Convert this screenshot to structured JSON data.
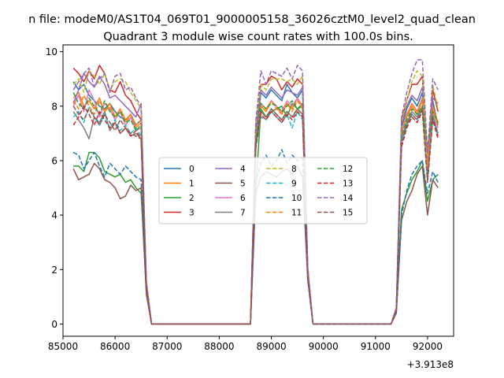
{
  "chart_data": {
    "type": "line",
    "suptitle": "n file: modeM0/AS1T04_069T01_9000005158_36026cztM0_level2_quad_clean",
    "title": "Quadrant 3 module wise count rates with 100.0s bins.",
    "xlabel": "",
    "ylabel": "",
    "x_offset_label": "+3.913e8",
    "xlim": [
      85000,
      92500
    ],
    "ylim": [
      -0.45,
      10.25
    ],
    "xticks": [
      85000,
      86000,
      87000,
      88000,
      89000,
      90000,
      91000,
      92000
    ],
    "xtick_labels": [
      "85000",
      "86000",
      "87000",
      "88000",
      "89000",
      "90000",
      "91000",
      "92000"
    ],
    "yticks": [
      0,
      2,
      4,
      6,
      8,
      10
    ],
    "ytick_labels": [
      "0",
      "2",
      "4",
      "6",
      "8",
      "10"
    ],
    "x": [
      85200,
      85300,
      85400,
      85500,
      85600,
      85700,
      85800,
      85900,
      86000,
      86100,
      86200,
      86300,
      86400,
      86500,
      86600,
      86700,
      86800,
      86900,
      87000,
      87100,
      87200,
      87300,
      87400,
      87500,
      87600,
      87700,
      87800,
      87900,
      88000,
      88100,
      88200,
      88300,
      88400,
      88500,
      88600,
      88700,
      88800,
      88900,
      89000,
      89100,
      89200,
      89300,
      89400,
      89500,
      89600,
      89700,
      89800,
      89900,
      90000,
      90100,
      90200,
      90300,
      90400,
      90500,
      90600,
      90700,
      90800,
      90900,
      91000,
      91100,
      91200,
      91300,
      91400,
      91500,
      91600,
      91700,
      91800,
      91900,
      92000,
      92100,
      92200
    ],
    "series": [
      {
        "name": "0",
        "color": "#1f77b4",
        "dash": "solid",
        "values": [
          8.9,
          8.6,
          8.8,
          8.4,
          8.2,
          8.0,
          7.9,
          8.1,
          7.8,
          7.6,
          7.5,
          7.7,
          7.3,
          7.5,
          1.4,
          0,
          0,
          0,
          0,
          0,
          0,
          0,
          0,
          0,
          0,
          0,
          0,
          0,
          0,
          0,
          0,
          0,
          0,
          0,
          0,
          6.8,
          8.5,
          8.3,
          8.6,
          8.4,
          8.2,
          8.8,
          8.5,
          8.3,
          8.6,
          2.0,
          0,
          0,
          0,
          0,
          0,
          0,
          0,
          0,
          0,
          0,
          0,
          0,
          0,
          0,
          0,
          0,
          0.5,
          7.2,
          7.9,
          8.3,
          8.0,
          8.5,
          5.5,
          8.2,
          7.3
        ]
      },
      {
        "name": "1",
        "color": "#ff7f0e",
        "dash": "solid",
        "values": [
          8.3,
          8.5,
          8.0,
          8.2,
          7.9,
          8.3,
          7.8,
          8.1,
          7.6,
          7.9,
          7.5,
          7.7,
          7.2,
          7.4,
          1.4,
          0,
          0,
          0,
          0,
          0,
          0,
          0,
          0,
          0,
          0,
          0,
          0,
          0,
          0,
          0,
          0,
          0,
          0,
          0,
          0,
          6.6,
          8.0,
          7.8,
          8.2,
          8.0,
          7.7,
          8.1,
          7.9,
          8.3,
          8.0,
          1.9,
          0,
          0,
          0,
          0,
          0,
          0,
          0,
          0,
          0,
          0,
          0,
          0,
          0,
          0,
          0,
          0,
          0.5,
          7.0,
          7.6,
          8.0,
          7.7,
          8.2,
          5.8,
          8.0,
          7.4
        ]
      },
      {
        "name": "2",
        "color": "#2ca02c",
        "dash": "solid",
        "values": [
          5.8,
          5.8,
          5.6,
          6.3,
          6.3,
          6.1,
          5.6,
          5.5,
          5.4,
          5.5,
          5.2,
          5.3,
          5.0,
          4.8,
          1.2,
          0,
          0,
          0,
          0,
          0,
          0,
          0,
          0,
          0,
          0,
          0,
          0,
          0,
          0,
          0,
          0,
          0,
          0,
          0,
          0,
          4.9,
          7.9,
          7.6,
          7.8,
          7.9,
          8.0,
          7.6,
          8.1,
          7.9,
          8.0,
          1.9,
          0,
          0,
          0,
          0,
          0,
          0,
          0,
          0,
          0,
          0,
          0,
          0,
          0,
          0,
          0,
          0,
          0.5,
          4.2,
          4.8,
          5.3,
          5.6,
          6.0,
          4.5,
          5.3,
          5.5
        ]
      },
      {
        "name": "3",
        "color": "#d62728",
        "dash": "solid",
        "values": [
          9.4,
          9.2,
          8.9,
          9.3,
          9.0,
          9.5,
          9.2,
          8.6,
          8.5,
          8.9,
          8.4,
          8.2,
          7.8,
          7.5,
          1.5,
          0,
          0,
          0,
          0,
          0,
          0,
          0,
          0,
          0,
          0,
          0,
          0,
          0,
          0,
          0,
          0,
          0,
          0,
          0,
          0,
          7.2,
          8.8,
          8.8,
          9.1,
          9.0,
          8.6,
          8.9,
          8.7,
          9.0,
          8.8,
          2.0,
          0,
          0,
          0,
          0,
          0,
          0,
          0,
          0,
          0,
          0,
          0,
          0,
          0,
          0,
          0,
          0,
          0.6,
          7.5,
          8.2,
          8.8,
          8.8,
          9.1,
          6.0,
          8.6,
          7.8
        ]
      },
      {
        "name": "4",
        "color": "#9467bd",
        "dash": "solid",
        "values": [
          8.1,
          8.6,
          9.2,
          8.9,
          8.7,
          9.1,
          8.8,
          8.3,
          8.4,
          8.2,
          8.0,
          7.8,
          7.6,
          8.1,
          1.5,
          0,
          0,
          0,
          0,
          0,
          0,
          0,
          0,
          0,
          0,
          0,
          0,
          0,
          0,
          0,
          0,
          0,
          0,
          0,
          0,
          7.0,
          8.6,
          8.4,
          8.7,
          8.5,
          8.3,
          8.6,
          8.5,
          8.4,
          8.7,
          2.0,
          0,
          0,
          0,
          0,
          0,
          0,
          0,
          0,
          0,
          0,
          0,
          0,
          0,
          0,
          0,
          0,
          0.6,
          7.3,
          8.0,
          8.4,
          8.2,
          8.7,
          5.8,
          8.3,
          8.1
        ]
      },
      {
        "name": "5",
        "color": "#8c564b",
        "dash": "solid",
        "values": [
          5.7,
          5.3,
          5.4,
          5.5,
          5.9,
          5.7,
          5.3,
          5.2,
          5.0,
          4.6,
          4.7,
          5.1,
          4.9,
          5.0,
          1.1,
          0,
          0,
          0,
          0,
          0,
          0,
          0,
          0,
          0,
          0,
          0,
          0,
          0,
          0,
          0,
          0,
          0,
          0,
          0,
          0,
          4.8,
          5.4,
          5.6,
          5.5,
          5.4,
          5.6,
          5.7,
          5.5,
          5.8,
          5.4,
          1.6,
          0,
          0,
          0,
          0,
          0,
          0,
          0,
          0,
          0,
          0,
          0,
          0,
          0,
          0,
          0,
          0,
          0.4,
          3.8,
          4.5,
          4.9,
          5.5,
          5.8,
          4.0,
          5.3,
          5.0
        ]
      },
      {
        "name": "6",
        "color": "#e377c2",
        "dash": "solid",
        "values": [
          8.0,
          8.4,
          7.8,
          8.6,
          8.2,
          7.6,
          8.1,
          7.9,
          7.5,
          7.8,
          7.3,
          7.6,
          7.1,
          7.2,
          1.4,
          0,
          0,
          0,
          0,
          0,
          0,
          0,
          0,
          0,
          0,
          0,
          0,
          0,
          0,
          0,
          0,
          0,
          0,
          0,
          0,
          6.7,
          8.1,
          7.9,
          8.2,
          8.0,
          7.8,
          8.2,
          8.0,
          8.3,
          7.9,
          1.9,
          0,
          0,
          0,
          0,
          0,
          0,
          0,
          0,
          0,
          0,
          0,
          0,
          0,
          0,
          0,
          0,
          0.5,
          7.0,
          7.7,
          8.1,
          7.8,
          8.3,
          5.6,
          7.9,
          7.2
        ]
      },
      {
        "name": "7",
        "color": "#7f7f7f",
        "dash": "solid",
        "values": [
          7.8,
          7.5,
          7.2,
          6.8,
          7.6,
          7.4,
          7.8,
          7.1,
          7.4,
          7.0,
          7.2,
          6.9,
          7.0,
          6.8,
          1.3,
          0,
          0,
          0,
          0,
          0,
          0,
          0,
          0,
          0,
          0,
          0,
          0,
          0,
          0,
          0,
          0,
          0,
          0,
          0,
          0,
          6.5,
          7.8,
          7.6,
          7.9,
          7.7,
          7.5,
          7.8,
          7.6,
          7.9,
          7.7,
          1.8,
          0,
          0,
          0,
          0,
          0,
          0,
          0,
          0,
          0,
          0,
          0,
          0,
          0,
          0,
          0,
          0,
          0.5,
          6.8,
          7.4,
          7.8,
          7.6,
          8.0,
          5.4,
          7.7,
          7.0
        ]
      },
      {
        "name": "8",
        "color": "#bcbd22",
        "dash": "dashed",
        "values": [
          8.8,
          9.0,
          8.5,
          9.3,
          9.1,
          8.8,
          9.2,
          8.6,
          8.9,
          9.0,
          8.9,
          8.5,
          8.2,
          7.9,
          1.6,
          0,
          0,
          0,
          0,
          0,
          0,
          0,
          0,
          0,
          0,
          0,
          0,
          0,
          0,
          0,
          0,
          0,
          0,
          0,
          0,
          7.3,
          8.8,
          8.6,
          9.0,
          9.0,
          9.0,
          8.9,
          9.0,
          8.8,
          9.1,
          2.1,
          0,
          0,
          0,
          0,
          0,
          0,
          0,
          0,
          0,
          0,
          0,
          0,
          0,
          0,
          0,
          0,
          0.6,
          7.4,
          8.2,
          8.9,
          9.3,
          9.1,
          6.2,
          8.8,
          7.9
        ]
      },
      {
        "name": "9",
        "color": "#17becf",
        "dash": "dashed",
        "values": [
          7.6,
          7.8,
          7.4,
          8.0,
          7.6,
          7.3,
          7.7,
          7.2,
          7.5,
          7.1,
          7.3,
          7.0,
          7.2,
          6.9,
          1.3,
          0,
          0,
          0,
          0,
          0,
          0,
          0,
          0,
          0,
          0,
          0,
          0,
          0,
          0,
          0,
          0,
          0,
          0,
          0,
          0,
          6.4,
          7.6,
          7.5,
          7.8,
          7.6,
          7.4,
          7.7,
          7.2,
          7.8,
          7.5,
          1.8,
          0,
          0,
          0,
          0,
          0,
          0,
          0,
          0,
          0,
          0,
          0,
          0,
          0,
          0,
          0,
          0,
          0.5,
          6.7,
          7.3,
          7.7,
          7.5,
          7.9,
          5.3,
          7.6,
          6.9
        ]
      },
      {
        "name": "10",
        "color": "#1f77b4",
        "dash": "dashed",
        "values": [
          6.3,
          6.2,
          5.7,
          6.0,
          6.3,
          5.8,
          5.4,
          5.9,
          5.7,
          5.5,
          5.8,
          5.6,
          5.4,
          5.3,
          1.2,
          0,
          0,
          0,
          0,
          0,
          0,
          0,
          0,
          0,
          0,
          0,
          0,
          0,
          0,
          0,
          0,
          0,
          0,
          0,
          0,
          5.2,
          5.9,
          6.2,
          5.8,
          6.0,
          6.4,
          5.9,
          6.2,
          6.0,
          6.1,
          1.7,
          0,
          0,
          0,
          0,
          0,
          0,
          0,
          0,
          0,
          0,
          0,
          0,
          0,
          0,
          0,
          0,
          0.4,
          4.0,
          4.9,
          5.5,
          5.8,
          6.0,
          4.8,
          5.6,
          5.2
        ]
      },
      {
        "name": "11",
        "color": "#ff7f0e",
        "dash": "dashed",
        "values": [
          8.2,
          7.9,
          8.4,
          8.0,
          7.7,
          8.2,
          7.8,
          8.0,
          7.6,
          7.9,
          7.4,
          7.7,
          7.3,
          7.5,
          1.4,
          0,
          0,
          0,
          0,
          0,
          0,
          0,
          0,
          0,
          0,
          0,
          0,
          0,
          0,
          0,
          0,
          0,
          0,
          0,
          0,
          6.6,
          8.0,
          7.9,
          8.2,
          7.9,
          7.7,
          8.1,
          7.8,
          8.2,
          7.9,
          1.9,
          0,
          0,
          0,
          0,
          0,
          0,
          0,
          0,
          0,
          0,
          0,
          0,
          0,
          0,
          0,
          0,
          0.5,
          7.0,
          7.7,
          8.1,
          7.8,
          8.3,
          5.7,
          8.0,
          7.3
        ]
      },
      {
        "name": "12",
        "color": "#2ca02c",
        "dash": "dashed",
        "values": [
          8.5,
          8.1,
          7.9,
          8.3,
          8.0,
          7.7,
          8.2,
          7.8,
          7.6,
          7.8,
          7.4,
          7.5,
          7.1,
          7.3,
          1.4,
          0,
          0,
          0,
          0,
          0,
          0,
          0,
          0,
          0,
          0,
          0,
          0,
          0,
          0,
          0,
          0,
          0,
          0,
          0,
          0,
          6.7,
          8.1,
          7.9,
          8.1,
          8.0,
          7.8,
          8.0,
          8.2,
          7.9,
          8.1,
          1.9,
          0,
          0,
          0,
          0,
          0,
          0,
          0,
          0,
          0,
          0,
          0,
          0,
          0,
          0,
          0,
          0,
          0.5,
          6.9,
          7.5,
          7.9,
          7.7,
          8.0,
          6.4,
          7.8,
          7.4
        ]
      },
      {
        "name": "13",
        "color": "#d62728",
        "dash": "dashed",
        "values": [
          7.3,
          7.6,
          8.0,
          7.7,
          7.3,
          7.8,
          7.5,
          7.2,
          7.4,
          7.0,
          7.2,
          6.9,
          7.1,
          6.8,
          1.3,
          0,
          0,
          0,
          0,
          0,
          0,
          0,
          0,
          0,
          0,
          0,
          0,
          0,
          0,
          0,
          0,
          0,
          0,
          0,
          0,
          6.5,
          7.7,
          7.5,
          7.8,
          7.6,
          7.4,
          7.7,
          7.5,
          7.8,
          7.6,
          1.8,
          0,
          0,
          0,
          0,
          0,
          0,
          0,
          0,
          0,
          0,
          0,
          0,
          0,
          0,
          0,
          0,
          0.5,
          6.5,
          7.2,
          7.6,
          7.4,
          7.8,
          5.2,
          7.5,
          6.8
        ]
      },
      {
        "name": "14",
        "color": "#9467bd",
        "dash": "dashed",
        "values": [
          8.6,
          8.9,
          9.2,
          9.4,
          8.7,
          9.0,
          9.2,
          8.5,
          9.1,
          9.2,
          8.6,
          8.7,
          8.3,
          8.0,
          1.6,
          0,
          0,
          0,
          0,
          0,
          0,
          0,
          0,
          0,
          0,
          0,
          0,
          0,
          0,
          0,
          0,
          0,
          0,
          0,
          0,
          7.4,
          9.3,
          8.8,
          9.3,
          9.2,
          9.1,
          9.4,
          9.0,
          9.5,
          9.3,
          2.1,
          0,
          0,
          0,
          0,
          0,
          0,
          0,
          0,
          0,
          0,
          0,
          0,
          0,
          0,
          0,
          0,
          0.6,
          7.6,
          8.5,
          9.2,
          9.7,
          9.7,
          6.3,
          9.0,
          8.6
        ]
      },
      {
        "name": "15",
        "color": "#8c564b",
        "dash": "dashed",
        "values": [
          8.0,
          7.7,
          7.5,
          7.9,
          7.6,
          7.3,
          7.7,
          7.4,
          7.1,
          7.5,
          7.2,
          7.0,
          6.9,
          6.8,
          1.3,
          0,
          0,
          0,
          0,
          0,
          0,
          0,
          0,
          0,
          0,
          0,
          0,
          0,
          0,
          0,
          0,
          0,
          0,
          0,
          0,
          6.5,
          7.8,
          7.6,
          7.9,
          7.7,
          7.5,
          7.8,
          7.6,
          7.9,
          7.7,
          1.8,
          0,
          0,
          0,
          0,
          0,
          0,
          0,
          0,
          0,
          0,
          0,
          0,
          0,
          0,
          0,
          0,
          0.5,
          6.6,
          7.3,
          7.7,
          7.5,
          7.9,
          5.3,
          7.6,
          6.9
        ]
      }
    ],
    "legend": {
      "position": "center-left",
      "columns": 4
    },
    "grid": false
  }
}
